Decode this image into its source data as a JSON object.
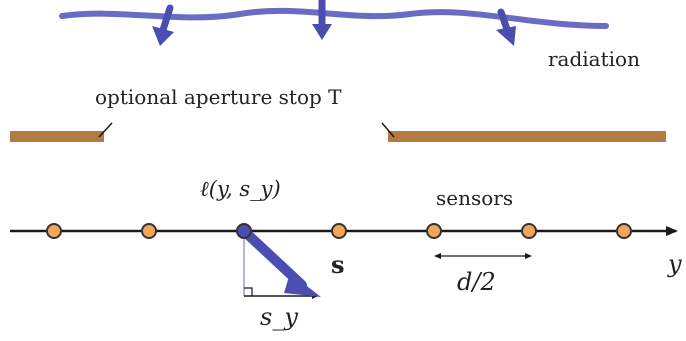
{
  "labels": {
    "radiation": "radiation",
    "aperture": "optional aperture stop T",
    "light_field": "ℓ(y, s_y)",
    "sensors": "sensors",
    "direction_vector": "s",
    "axis": "y",
    "spacing": "d/2",
    "s_y": "s_y"
  },
  "colors": {
    "wave": "#6a6cc4",
    "arrow": "#4c4db0",
    "stop": "#b57a3f",
    "sensor_fill": "#f2a65a",
    "sensor_stroke": "#333333",
    "axis": "#1a1a1a",
    "highlight_sensor": "#4c4db0"
  },
  "sensors": {
    "count": 7,
    "highlighted_index": 2
  },
  "icons": [
    "radiation-wave",
    "aperture-stop",
    "sensor-dot",
    "direction-arrow",
    "axis-arrow",
    "spacing-double-arrow"
  ]
}
